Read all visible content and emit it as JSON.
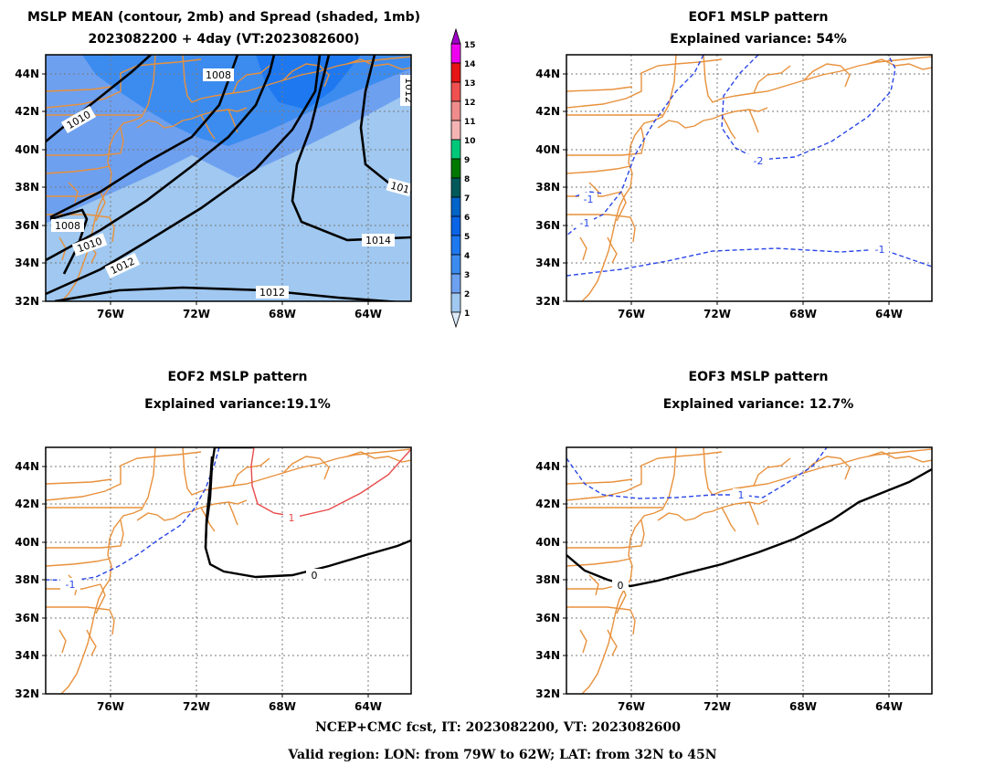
{
  "panels": {
    "mean": {
      "title_line1": "MSLP MEAN (contour, 2mb) and Spread (shaded, 1mb)",
      "title_line2": "2023082200 + 4day (VT:2023082600)",
      "contour_labels": [
        "1008",
        "1010",
        "1008",
        "1010",
        "1012",
        "1012",
        "1014",
        "101",
        "1012"
      ]
    },
    "eof1": {
      "title_line1": "EOF1 MSLP pattern",
      "title_line2": "Explained variance: 54%",
      "explained_variance_pct": 54,
      "contour_labels": [
        "-2",
        "-1",
        "-1",
        "-1"
      ]
    },
    "eof2": {
      "title_line1": "EOF2 MSLP pattern",
      "title_line2": "Explained variance:19.1%",
      "explained_variance_pct": 19.1,
      "contour_labels": [
        "1",
        "0",
        "-1"
      ]
    },
    "eof3": {
      "title_line1": "EOF3 MSLP pattern",
      "title_line2": "Explained variance: 12.7%",
      "explained_variance_pct": 12.7,
      "contour_labels": [
        "1",
        "0"
      ]
    }
  },
  "axes": {
    "lat_labels": [
      "44N",
      "42N",
      "40N",
      "38N",
      "36N",
      "34N",
      "32N"
    ],
    "lon_labels": [
      "76W",
      "72W",
      "68W",
      "64W"
    ]
  },
  "colorbar": {
    "labels": [
      "15",
      "14",
      "13",
      "12",
      "11",
      "10",
      "9",
      "8",
      "7",
      "6",
      "5",
      "4",
      "3",
      "2",
      "1"
    ],
    "colors": [
      "#a000c8",
      "#f000f0",
      "#e61414",
      "#f05050",
      "#f08c8c",
      "#f5b4b4",
      "#00c87a",
      "#007800",
      "#005a5a",
      "#0064c8",
      "#0a64e6",
      "#1e78f0",
      "#3c8cf0",
      "#6ea0f0",
      "#a0c8f0",
      "#dcebfa"
    ]
  },
  "colors": {
    "coast": "#e8913c",
    "positive": "#e84a4a",
    "negative": "#2a46e8",
    "zero": "#000000"
  },
  "footer": {
    "line1": "NCEP+CMC fcst, IT: 2023082200, VT: 2023082600",
    "line2": "Valid region: LON: from 79W to 62W; LAT: from 32N to 45N"
  }
}
